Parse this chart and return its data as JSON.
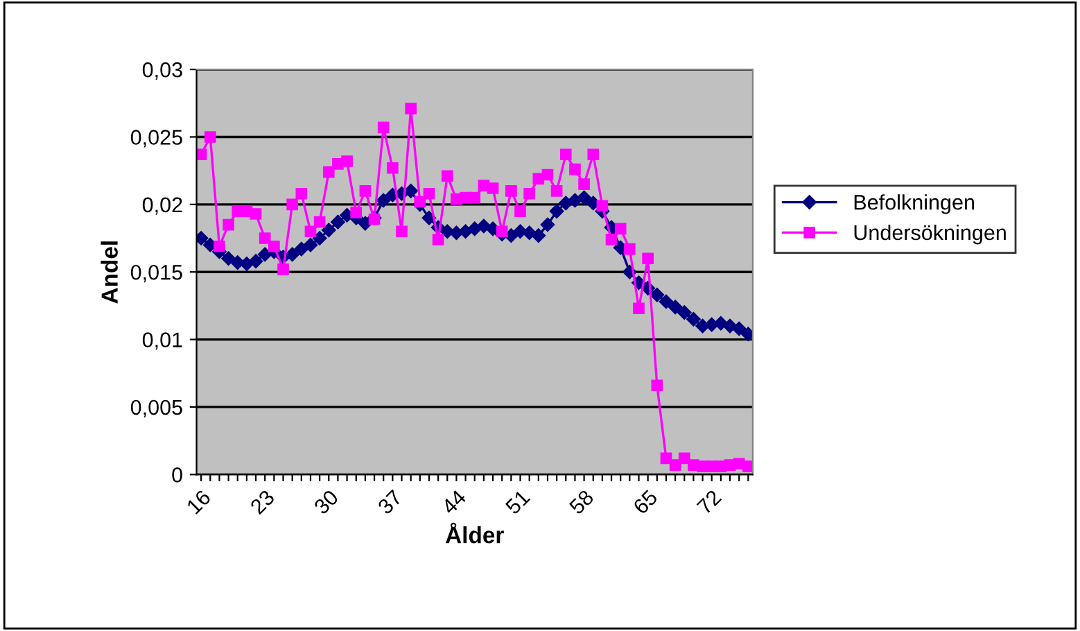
{
  "chart_data": {
    "type": "line",
    "xlabel": "Ålder",
    "ylabel": "Andel",
    "categories": [
      "16",
      null,
      null,
      null,
      null,
      null,
      null,
      "23",
      null,
      null,
      null,
      null,
      null,
      null,
      "30",
      null,
      null,
      null,
      null,
      null,
      null,
      "37",
      null,
      null,
      null,
      null,
      null,
      null,
      "44",
      null,
      null,
      null,
      null,
      null,
      null,
      "51",
      null,
      null,
      null,
      null,
      null,
      null,
      "58",
      null,
      null,
      null,
      null,
      null,
      null,
      "65",
      null,
      null,
      null,
      null,
      null,
      null,
      "72",
      null,
      null,
      null,
      null
    ],
    "series": [
      {
        "name": "Befolkningen",
        "color": "#000080",
        "marker": "diamond",
        "values": [
          0.0175,
          0.017,
          0.0165,
          0.016,
          0.0157,
          0.0156,
          0.0158,
          0.0163,
          0.0165,
          0.0161,
          0.0163,
          0.0167,
          0.017,
          0.0175,
          0.0181,
          0.0187,
          0.0192,
          0.019,
          0.0186,
          0.019,
          0.0203,
          0.0207,
          0.0208,
          0.021,
          0.02,
          0.019,
          0.0183,
          0.018,
          0.0179,
          0.018,
          0.0182,
          0.0184,
          0.0182,
          0.0178,
          0.0177,
          0.018,
          0.0179,
          0.0177,
          0.0185,
          0.0195,
          0.0201,
          0.0203,
          0.0205,
          0.0201,
          0.0195,
          0.0183,
          0.0168,
          0.015,
          0.0142,
          0.0138,
          0.0133,
          0.0128,
          0.0124,
          0.012,
          0.0115,
          0.011,
          0.0111,
          0.0112,
          0.011,
          0.0108,
          0.0104
        ]
      },
      {
        "name": "Undersökningen",
        "color": "#ff00ff",
        "marker": "square",
        "values": [
          0.0237,
          0.025,
          0.0169,
          0.0185,
          0.0195,
          0.0195,
          0.0193,
          0.0175,
          0.0169,
          0.0152,
          0.02,
          0.0208,
          0.018,
          0.0187,
          0.0224,
          0.023,
          0.0232,
          0.0194,
          0.021,
          0.0189,
          0.0257,
          0.0227,
          0.018,
          0.0271,
          0.0202,
          0.0208,
          0.0174,
          0.0221,
          0.0204,
          0.0205,
          0.0205,
          0.0214,
          0.0212,
          0.018,
          0.021,
          0.0195,
          0.0208,
          0.0219,
          0.0222,
          0.021,
          0.0237,
          0.0226,
          0.0215,
          0.0237,
          0.0199,
          0.0174,
          0.0182,
          0.0167,
          0.0123,
          0.016,
          0.0066,
          0.0012,
          0.0007,
          0.0012,
          0.0007,
          0.0006,
          0.0006,
          0.0006,
          0.0007,
          0.0008,
          0.0006
        ]
      }
    ],
    "ylim": [
      0,
      0.03
    ],
    "yticks": [
      0,
      {
        "value": 0.005,
        "label": "0,005"
      },
      {
        "value": 0.01,
        "label": "0,01"
      },
      {
        "value": 0.015,
        "label": "0,015"
      },
      {
        "value": 0.02,
        "label": "0,02"
      },
      {
        "value": 0.025,
        "label": "0,025"
      },
      {
        "value": 0.03,
        "label": "0,03"
      }
    ],
    "grid": "y",
    "legend": "right",
    "line_style": "solid"
  }
}
